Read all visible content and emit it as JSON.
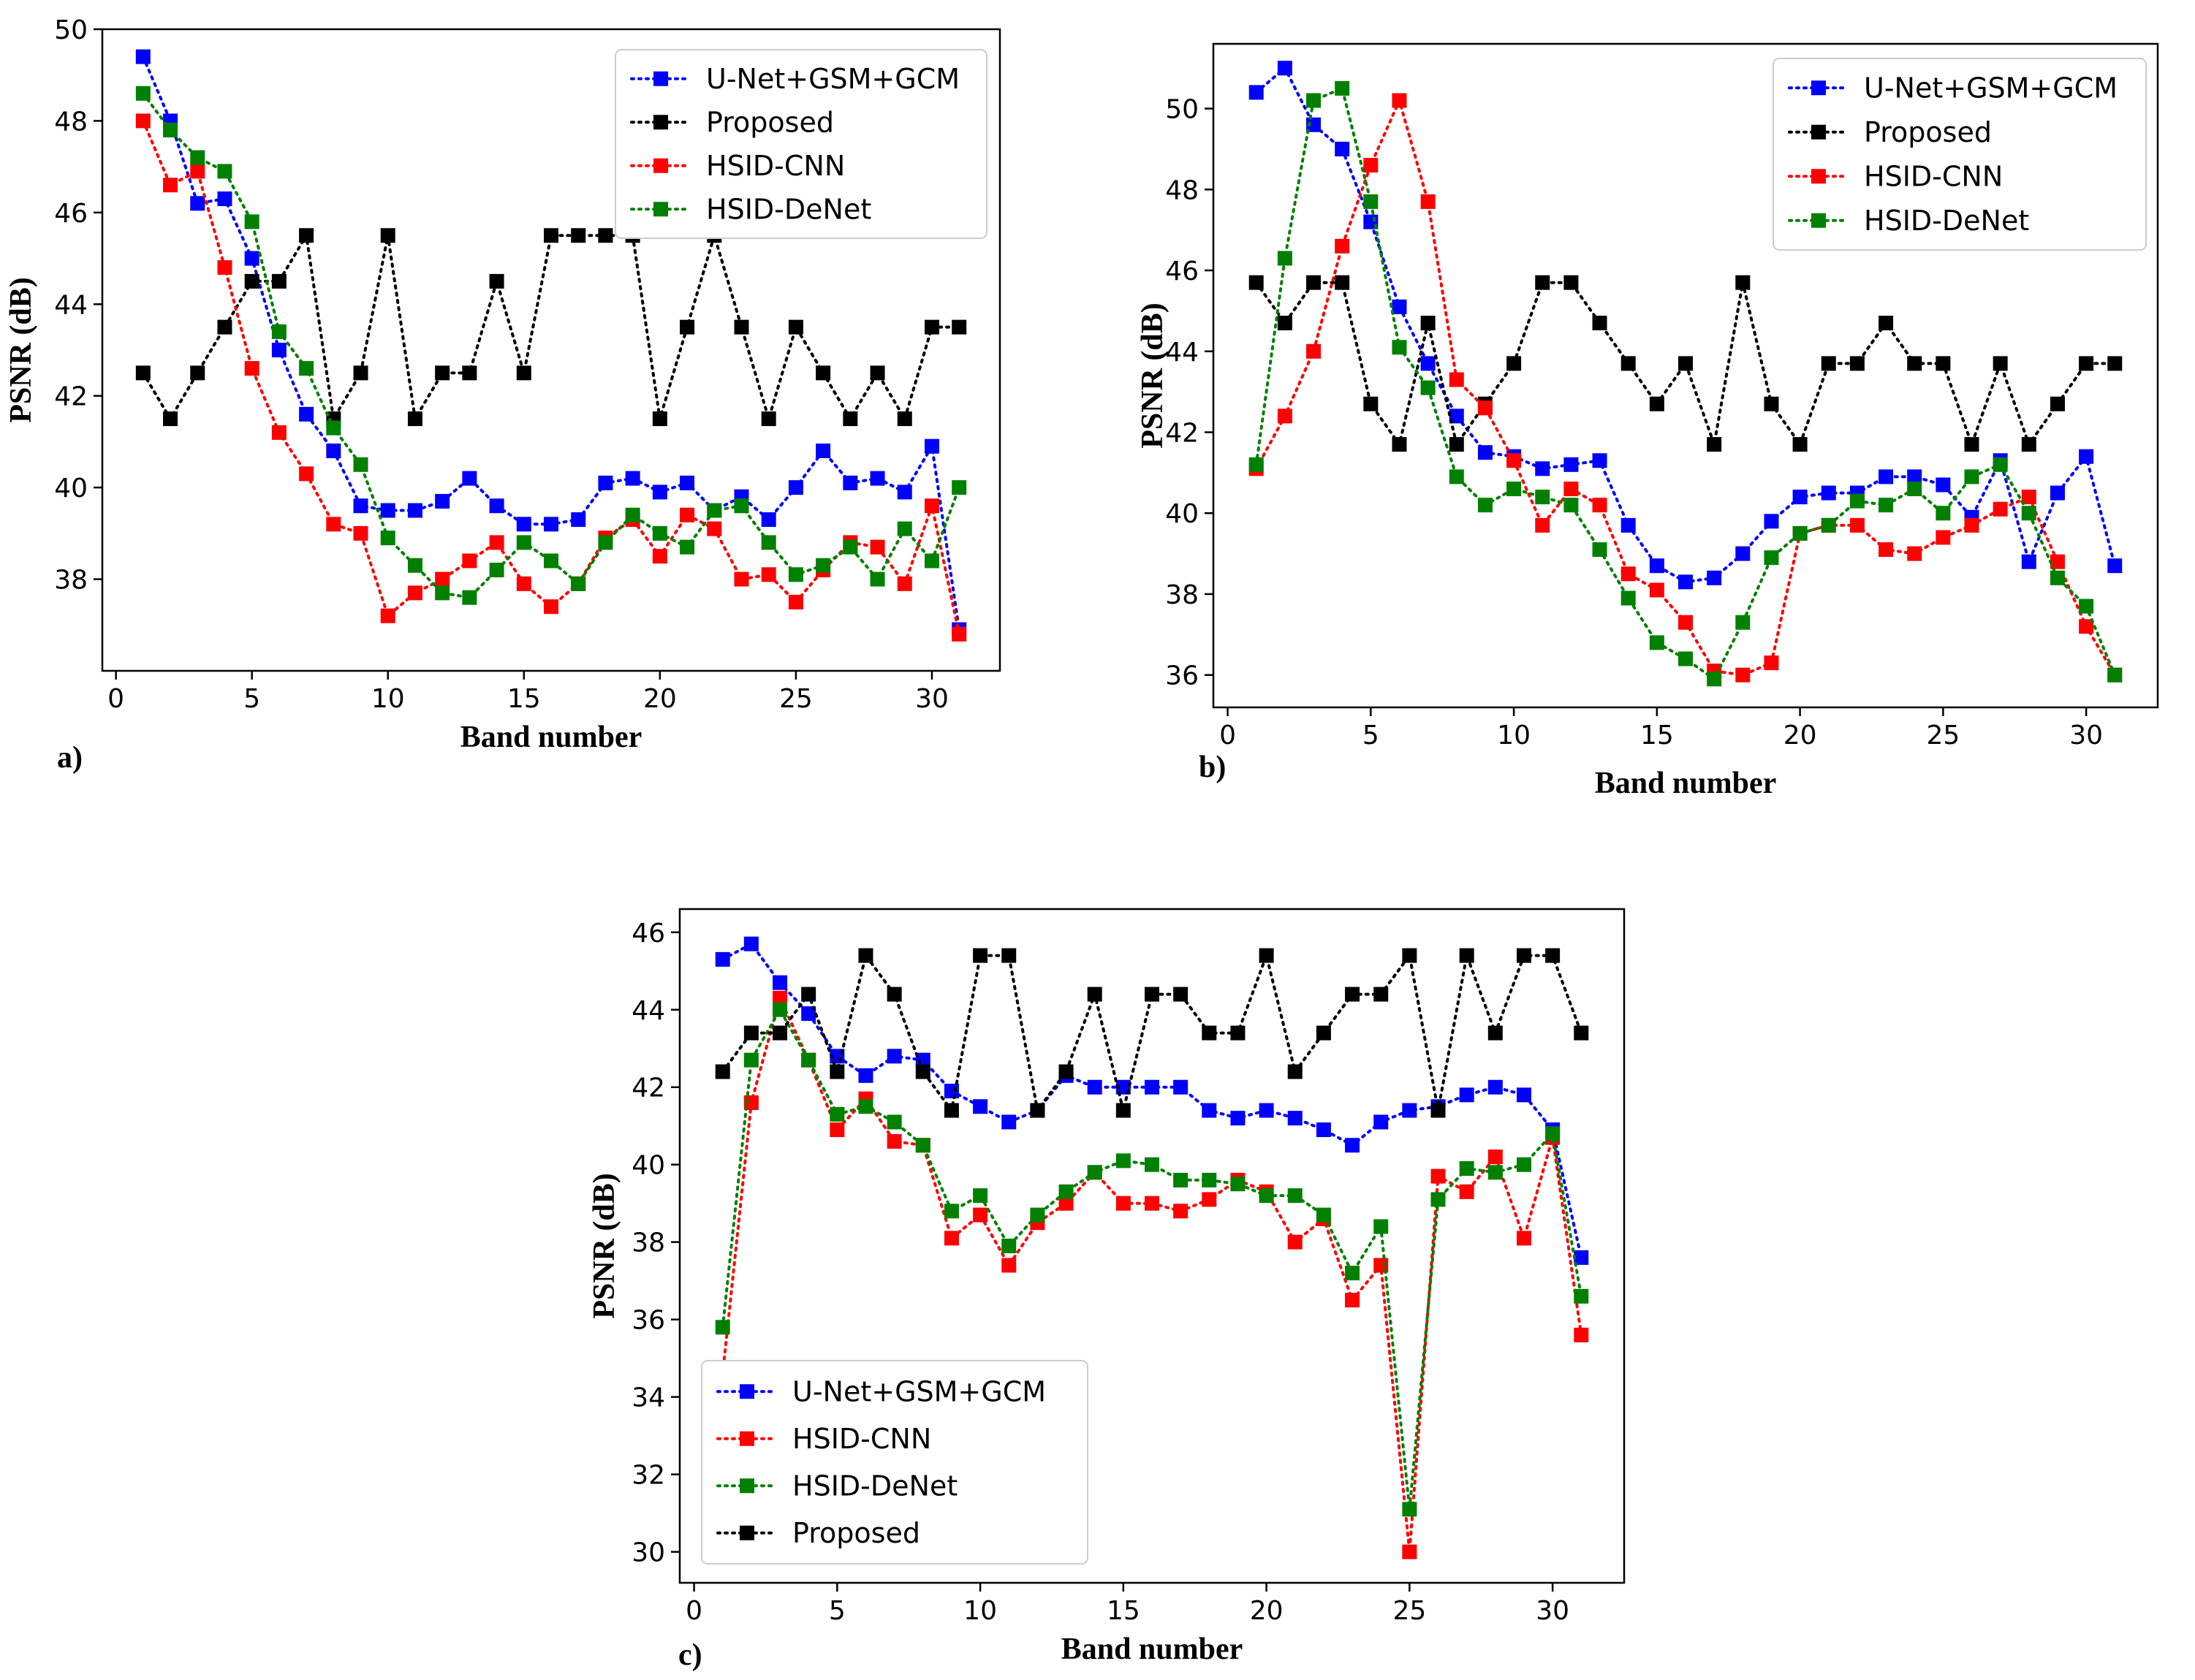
{
  "colors": {
    "U-Net+GSM+GCM": "#0000ff",
    "Proposed": "#000000",
    "HSID-CNN": "#ff0000",
    "HSID-DeNet": "#008000"
  },
  "chart_data": [
    {
      "type": "line",
      "panel_label": "a)",
      "title": "",
      "xlabel": "Band number",
      "ylabel": "PSNR (dB)",
      "xlim": [
        -0.5,
        32.5
      ],
      "ylim": [
        36.0,
        50.0
      ],
      "xticks": [
        0,
        5,
        10,
        15,
        20,
        25,
        30
      ],
      "yticks": [
        38,
        40,
        42,
        44,
        46,
        48,
        50
      ],
      "legend_position": "top-right",
      "legend_order": [
        "U-Net+GSM+GCM",
        "Proposed",
        "HSID-CNN",
        "HSID-DeNet"
      ],
      "x": [
        1,
        2,
        3,
        4,
        5,
        6,
        7,
        8,
        9,
        10,
        11,
        12,
        13,
        14,
        15,
        16,
        17,
        18,
        19,
        20,
        21,
        22,
        23,
        24,
        25,
        26,
        27,
        28,
        29,
        30,
        31
      ],
      "series": [
        {
          "name": "U-Net+GSM+GCM",
          "values": [
            49.4,
            48.0,
            46.2,
            46.3,
            45.0,
            43.0,
            41.6,
            40.8,
            39.6,
            39.5,
            39.5,
            39.7,
            40.2,
            39.6,
            39.2,
            39.2,
            39.3,
            40.1,
            40.2,
            39.9,
            40.1,
            39.5,
            39.8,
            39.3,
            40.0,
            40.8,
            40.1,
            40.2,
            39.9,
            40.9,
            36.9
          ]
        },
        {
          "name": "Proposed",
          "values": [
            42.5,
            41.5,
            42.5,
            43.5,
            44.5,
            44.5,
            45.5,
            41.5,
            42.5,
            45.5,
            41.5,
            42.5,
            42.5,
            44.5,
            42.5,
            45.5,
            45.5,
            45.5,
            45.5,
            41.5,
            43.5,
            45.5,
            43.5,
            41.5,
            43.5,
            42.5,
            41.5,
            42.5,
            41.5,
            43.5,
            43.5
          ]
        },
        {
          "name": "HSID-CNN",
          "values": [
            48.0,
            46.6,
            46.9,
            44.8,
            42.6,
            41.2,
            40.3,
            39.2,
            39.0,
            37.2,
            37.7,
            38.0,
            38.4,
            38.8,
            37.9,
            37.4,
            37.9,
            38.9,
            39.3,
            38.5,
            39.4,
            39.1,
            38.0,
            38.1,
            37.5,
            38.2,
            38.8,
            38.7,
            37.9,
            39.6,
            36.8
          ]
        },
        {
          "name": "HSID-DeNet",
          "values": [
            48.6,
            47.8,
            47.2,
            46.9,
            45.8,
            43.4,
            42.6,
            41.3,
            40.5,
            38.9,
            38.3,
            37.7,
            37.6,
            38.2,
            38.8,
            38.4,
            37.9,
            38.8,
            39.4,
            39.0,
            38.7,
            39.5,
            39.6,
            38.8,
            38.1,
            38.3,
            38.7,
            38.0,
            39.1,
            38.4,
            40.0
          ]
        }
      ]
    },
    {
      "type": "line",
      "panel_label": "b)",
      "title": "",
      "xlabel": "Band number",
      "ylabel": "PSNR (dB)",
      "xlim": [
        -0.5,
        32.5
      ],
      "ylim": [
        35.2,
        51.6
      ],
      "xticks": [
        0,
        5,
        10,
        15,
        20,
        25,
        30
      ],
      "yticks": [
        36,
        38,
        40,
        42,
        44,
        46,
        48,
        50
      ],
      "legend_position": "top-right",
      "legend_order": [
        "U-Net+GSM+GCM",
        "Proposed",
        "HSID-CNN",
        "HSID-DeNet"
      ],
      "x": [
        1,
        2,
        3,
        4,
        5,
        6,
        7,
        8,
        9,
        10,
        11,
        12,
        13,
        14,
        15,
        16,
        17,
        18,
        19,
        20,
        21,
        22,
        23,
        24,
        25,
        26,
        27,
        28,
        29,
        30,
        31
      ],
      "series": [
        {
          "name": "U-Net+GSM+GCM",
          "values": [
            50.4,
            51.0,
            49.6,
            49.0,
            47.2,
            45.1,
            43.7,
            42.4,
            41.5,
            41.4,
            41.1,
            41.2,
            41.3,
            39.7,
            38.7,
            38.3,
            38.4,
            39.0,
            39.8,
            40.4,
            40.5,
            40.5,
            40.9,
            40.9,
            40.7,
            39.9,
            41.3,
            38.8,
            40.5,
            41.4,
            38.7
          ]
        },
        {
          "name": "Proposed",
          "values": [
            45.7,
            44.7,
            45.7,
            45.7,
            42.7,
            41.7,
            44.7,
            41.7,
            42.7,
            43.7,
            45.7,
            45.7,
            44.7,
            43.7,
            42.7,
            43.7,
            41.7,
            45.7,
            42.7,
            41.7,
            43.7,
            43.7,
            44.7,
            43.7,
            43.7,
            41.7,
            43.7,
            41.7,
            42.7,
            43.7,
            43.7
          ]
        },
        {
          "name": "HSID-CNN",
          "values": [
            41.1,
            42.4,
            44.0,
            46.6,
            48.6,
            50.2,
            47.7,
            43.3,
            42.6,
            41.3,
            39.7,
            40.6,
            40.2,
            38.5,
            38.1,
            37.3,
            36.1,
            36.0,
            36.3,
            39.5,
            39.7,
            39.7,
            39.1,
            39.0,
            39.4,
            39.7,
            40.1,
            40.4,
            38.8,
            37.2,
            36.0
          ]
        },
        {
          "name": "HSID-DeNet",
          "values": [
            41.2,
            46.3,
            50.2,
            50.5,
            47.7,
            44.1,
            43.1,
            40.9,
            40.2,
            40.6,
            40.4,
            40.2,
            39.1,
            37.9,
            36.8,
            36.4,
            35.9,
            37.3,
            38.9,
            39.5,
            39.7,
            40.3,
            40.2,
            40.6,
            40.0,
            40.9,
            41.2,
            40.0,
            38.4,
            37.7,
            36.0
          ]
        }
      ]
    },
    {
      "type": "line",
      "panel_label": "c)",
      "title": "",
      "xlabel": "Band number",
      "ylabel": "PSNR (dB)",
      "xlim": [
        -0.5,
        32.5
      ],
      "ylim": [
        29.2,
        46.6
      ],
      "xticks": [
        0,
        5,
        10,
        15,
        20,
        25,
        30
      ],
      "yticks": [
        30,
        32,
        34,
        36,
        38,
        40,
        42,
        44,
        46
      ],
      "legend_position": "bottom-left",
      "legend_order": [
        "U-Net+GSM+GCM",
        "HSID-CNN",
        "HSID-DeNet",
        "Proposed"
      ],
      "x": [
        1,
        2,
        3,
        4,
        5,
        6,
        7,
        8,
        9,
        10,
        11,
        12,
        13,
        14,
        15,
        16,
        17,
        18,
        19,
        20,
        21,
        22,
        23,
        24,
        25,
        26,
        27,
        28,
        29,
        30,
        31
      ],
      "series": [
        {
          "name": "U-Net+GSM+GCM",
          "values": [
            45.3,
            45.7,
            44.7,
            43.9,
            42.8,
            42.3,
            42.8,
            42.7,
            41.9,
            41.5,
            41.1,
            41.4,
            42.3,
            42.0,
            42.0,
            42.0,
            42.0,
            41.4,
            41.2,
            41.4,
            41.2,
            40.9,
            40.5,
            41.1,
            41.4,
            41.5,
            41.8,
            42.0,
            41.8,
            40.9,
            37.6
          ]
        },
        {
          "name": "HSID-CNN",
          "values": [
            34.6,
            41.6,
            44.3,
            42.7,
            40.9,
            41.7,
            40.6,
            40.5,
            38.1,
            38.7,
            37.4,
            38.5,
            39.0,
            39.8,
            39.0,
            39.0,
            38.8,
            39.1,
            39.6,
            39.3,
            38.0,
            38.6,
            36.5,
            37.4,
            30.0,
            39.7,
            39.3,
            40.2,
            38.1,
            40.7,
            35.6
          ]
        },
        {
          "name": "HSID-DeNet",
          "values": [
            35.8,
            42.7,
            44.0,
            42.7,
            41.3,
            41.5,
            41.1,
            40.5,
            38.8,
            39.2,
            37.9,
            38.7,
            39.3,
            39.8,
            40.1,
            40.0,
            39.6,
            39.6,
            39.5,
            39.2,
            39.2,
            38.7,
            37.2,
            38.4,
            31.1,
            39.1,
            39.9,
            39.8,
            40.0,
            40.8,
            36.6
          ]
        },
        {
          "name": "Proposed",
          "values": [
            42.4,
            43.4,
            43.4,
            44.4,
            42.4,
            45.4,
            44.4,
            42.4,
            41.4,
            45.4,
            45.4,
            41.4,
            42.4,
            44.4,
            41.4,
            44.4,
            44.4,
            43.4,
            43.4,
            45.4,
            42.4,
            43.4,
            44.4,
            44.4,
            45.4,
            41.4,
            45.4,
            43.4,
            45.4,
            45.4,
            43.4
          ]
        }
      ]
    }
  ]
}
